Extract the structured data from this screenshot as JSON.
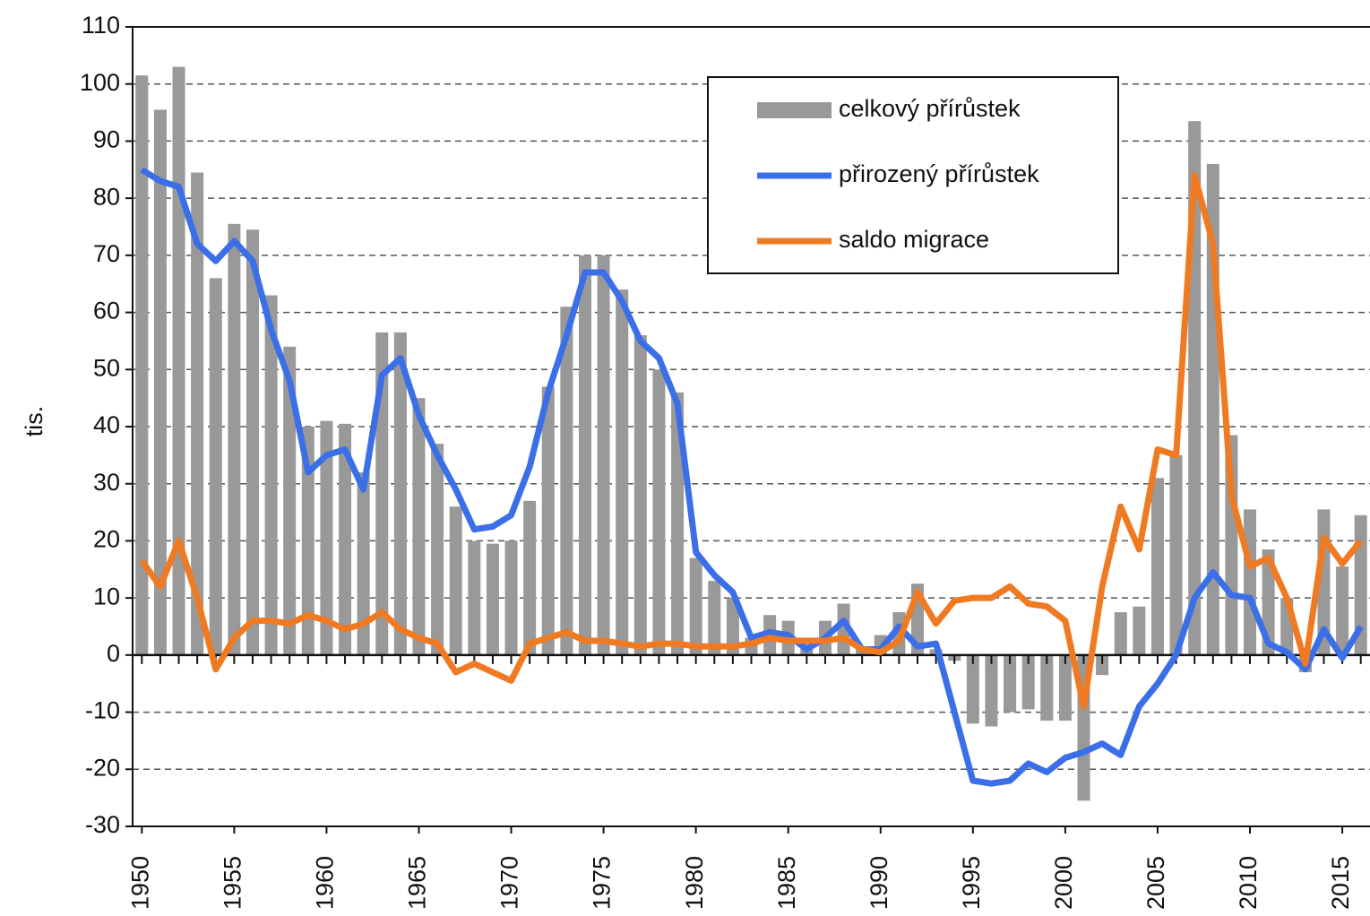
{
  "chart_data": {
    "type": "bar-line",
    "y_label": "tis.",
    "x": [
      1950,
      1951,
      1952,
      1953,
      1954,
      1955,
      1956,
      1957,
      1958,
      1959,
      1960,
      1961,
      1962,
      1963,
      1964,
      1965,
      1966,
      1967,
      1968,
      1969,
      1970,
      1971,
      1972,
      1973,
      1974,
      1975,
      1976,
      1977,
      1978,
      1979,
      1980,
      1981,
      1982,
      1983,
      1984,
      1985,
      1986,
      1987,
      1988,
      1989,
      1990,
      1991,
      1992,
      1993,
      1994,
      1995,
      1996,
      1997,
      1998,
      1999,
      2000,
      2001,
      2002,
      2003,
      2004,
      2005,
      2006,
      2007,
      2008,
      2009,
      2010,
      2011,
      2012,
      2013,
      2014,
      2015,
      2016
    ],
    "series": [
      {
        "name": "celkový přírůstek",
        "kind": "bar",
        "color": "#999999",
        "values": [
          101.5,
          95.5,
          103,
          84.5,
          66,
          75.5,
          74.5,
          63,
          54,
          40,
          41,
          40.5,
          32,
          56.5,
          56.5,
          45,
          37,
          26,
          20,
          19.5,
          20,
          27,
          47,
          61,
          70,
          70,
          64,
          56,
          50,
          46,
          17,
          13,
          10,
          3,
          7,
          6,
          2,
          6,
          9,
          1,
          3.5,
          7.5,
          12.5,
          1,
          -1,
          -12,
          -12.5,
          -10,
          -9.5,
          -11.5,
          -11.5,
          -25.5,
          -3.5,
          7.5,
          8.5,
          31,
          35,
          93.5,
          86,
          38.5,
          25.5,
          18.5,
          10,
          -3,
          25.5,
          15.5,
          24.5
        ]
      },
      {
        "name": "přirozený přírůstek",
        "kind": "line",
        "color": "#3b6fe8",
        "values": [
          85,
          83,
          82,
          72,
          69,
          72.5,
          69,
          57,
          48,
          32,
          35,
          36,
          29,
          49,
          52,
          42,
          35,
          29,
          22,
          22.5,
          24.5,
          33,
          46,
          56,
          67,
          67,
          62,
          55,
          52,
          44,
          18,
          14,
          11,
          3,
          4,
          3.5,
          1,
          3,
          6,
          1,
          1,
          5,
          1.5,
          2,
          -10,
          -22,
          -22.5,
          -22,
          -19,
          -20.5,
          -18,
          -17,
          -15.5,
          -17.5,
          -9,
          -5,
          0,
          10,
          14.5,
          10.5,
          10,
          2,
          0.5,
          -2.5,
          4.5,
          -0.5,
          5
        ]
      },
      {
        "name": "saldo migrace",
        "kind": "line",
        "color": "#f07a22",
        "values": [
          16.5,
          12,
          20,
          10,
          -2.5,
          3,
          6,
          6,
          5.5,
          7,
          6,
          4.5,
          5.5,
          7.5,
          4.5,
          3,
          2,
          -3,
          -1.5,
          -3,
          -4.5,
          2,
          3,
          4,
          2.5,
          2.5,
          2,
          1.5,
          2,
          2,
          1.5,
          1.5,
          1.5,
          2,
          3,
          2.5,
          2.5,
          2.5,
          3,
          1,
          0.5,
          2.5,
          11,
          5.5,
          9.5,
          10,
          10,
          12,
          9,
          8.5,
          6,
          -9,
          12,
          26,
          18.5,
          36,
          35,
          84,
          72,
          28,
          15.5,
          17,
          10,
          -1.5,
          20.5,
          16,
          20
        ]
      }
    ],
    "xlim": [
      1949.5,
      2016.5
    ],
    "xticks": [
      1950,
      1955,
      1960,
      1965,
      1970,
      1975,
      1980,
      1985,
      1990,
      1995,
      2000,
      2005,
      2010,
      2015
    ],
    "ylim": [
      -30,
      110
    ],
    "yticks": [
      -30,
      -20,
      -10,
      0,
      10,
      20,
      30,
      40,
      50,
      60,
      70,
      80,
      90,
      100,
      110
    ],
    "grid": true
  }
}
